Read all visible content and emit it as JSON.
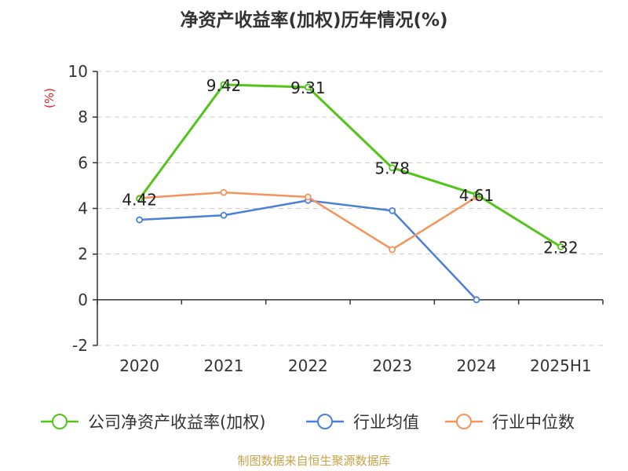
{
  "chart_data": {
    "type": "line",
    "title": "净资产收益率(加权)历年情况(%)",
    "ylabel": "(%)",
    "xlabel": "",
    "categories": [
      "2020",
      "2021",
      "2022",
      "2023",
      "2024",
      "2025H1"
    ],
    "ylim": [
      -2,
      10
    ],
    "yticks": [
      -2,
      0,
      2,
      4,
      6,
      8,
      10
    ],
    "grid": true,
    "legend_position": "bottom",
    "series": [
      {
        "name": "公司净资产收益率(加权)",
        "color": "#52c41a",
        "values": [
          4.42,
          9.42,
          9.31,
          5.78,
          4.61,
          2.32
        ],
        "labels": [
          "4.42",
          "9.42",
          "9.31",
          "5.78",
          "4.61",
          "2.32"
        ]
      },
      {
        "name": "行业均值",
        "color": "#4a7fd8",
        "values": [
          3.5,
          3.7,
          4.35,
          3.9,
          0.0,
          null
        ]
      },
      {
        "name": "行业中位数",
        "color": "#f5935c",
        "values": [
          4.45,
          4.7,
          4.5,
          2.2,
          4.5,
          null
        ]
      }
    ]
  },
  "source": "制图数据来自恒生聚源数据库"
}
